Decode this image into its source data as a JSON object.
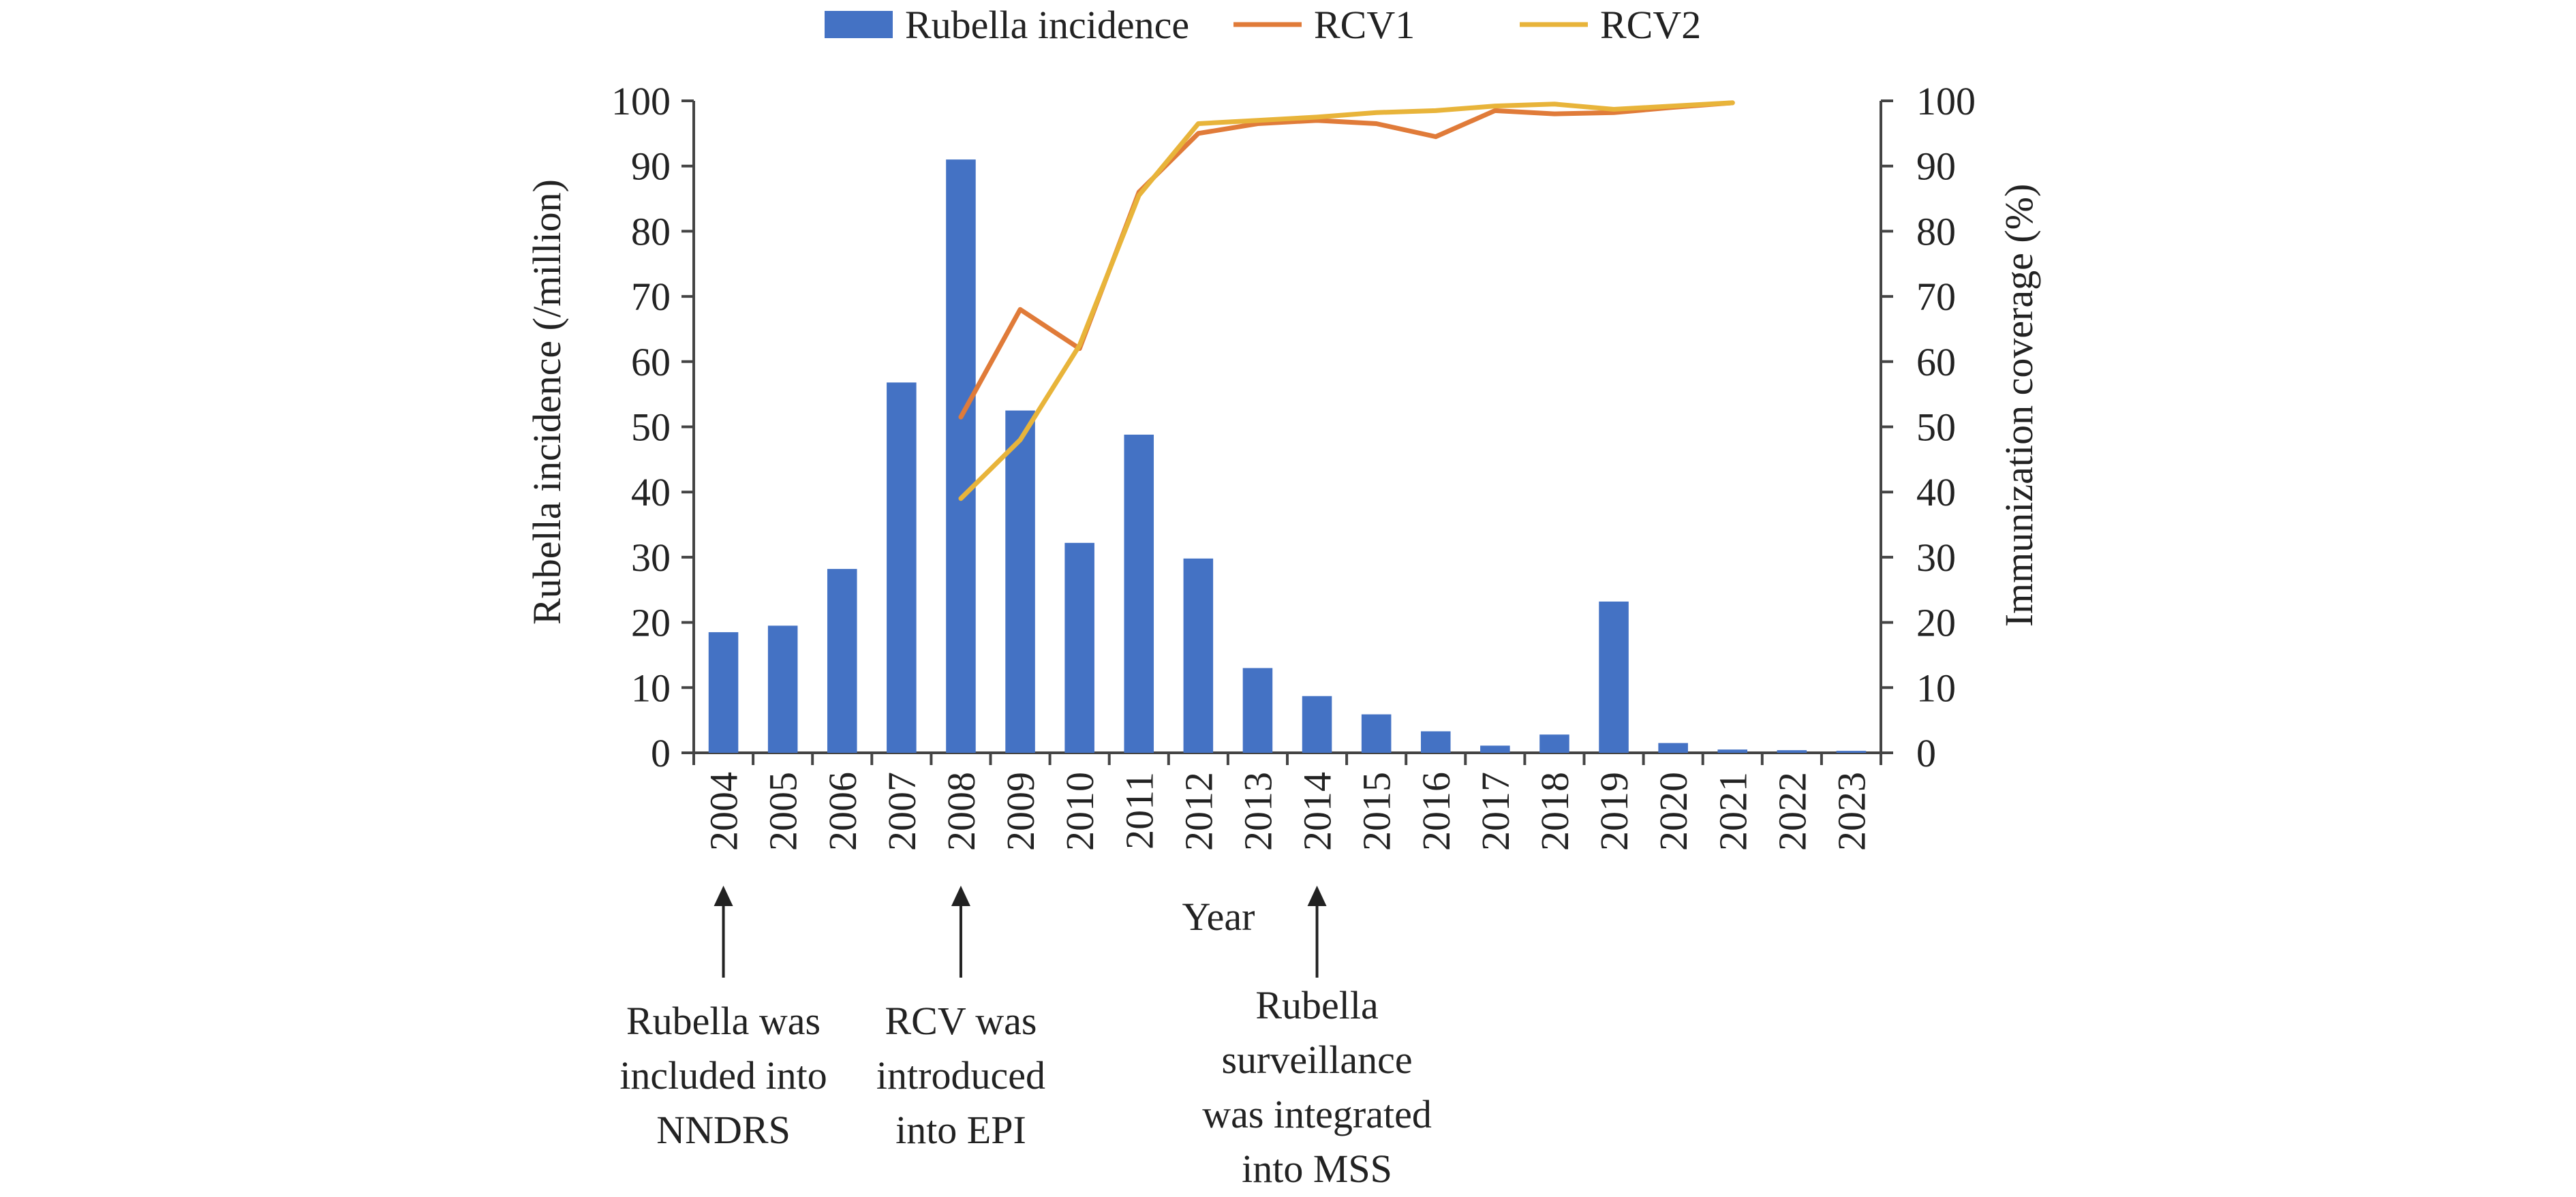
{
  "chart_data": {
    "type": "bar",
    "categories": [
      "2004",
      "2005",
      "2006",
      "2007",
      "2008",
      "2009",
      "2010",
      "2011",
      "2012",
      "2013",
      "2014",
      "2015",
      "2016",
      "2017",
      "2018",
      "2019",
      "2020",
      "2021",
      "2022",
      "2023"
    ],
    "xlabel": "Year",
    "ylabel": "Rubella incidence (/million)",
    "y2label": "Immunization coverage (%)",
    "ylim": [
      0,
      100
    ],
    "y2lim": [
      0,
      100
    ],
    "yticks": [
      "0",
      "10",
      "20",
      "30",
      "40",
      "50",
      "60",
      "70",
      "80",
      "90",
      "100"
    ],
    "y2ticks": [
      "0",
      "10",
      "20",
      "30",
      "40",
      "50",
      "60",
      "70",
      "80",
      "90",
      "100"
    ],
    "legend_position": "top",
    "series": [
      {
        "name": "Rubella incidence",
        "type": "bar",
        "axis": "left",
        "color": "#4472C4",
        "values": [
          18.5,
          19.5,
          28.2,
          56.8,
          91.0,
          52.5,
          32.2,
          48.8,
          29.8,
          13.0,
          8.7,
          5.9,
          3.3,
          1.1,
          2.8,
          23.2,
          1.5,
          0.5,
          0.4,
          0.3
        ]
      },
      {
        "name": "RCV1",
        "type": "line",
        "axis": "right",
        "color": "#E07B39",
        "x": [
          "2008",
          "2009",
          "2010",
          "2011",
          "2012",
          "2013",
          "2014",
          "2015",
          "2016",
          "2017",
          "2018",
          "2019",
          "2020",
          "2021"
        ],
        "values": [
          51.5,
          68.0,
          62.0,
          86.0,
          95.0,
          96.5,
          97.0,
          96.5,
          94.5,
          98.5,
          98.0,
          98.2,
          99.0,
          99.7
        ]
      },
      {
        "name": "RCV2",
        "type": "line",
        "axis": "right",
        "color": "#E8B43A",
        "x": [
          "2008",
          "2009",
          "2010",
          "2011",
          "2012",
          "2013",
          "2014",
          "2015",
          "2016",
          "2017",
          "2018",
          "2019",
          "2020",
          "2021"
        ],
        "values": [
          39.0,
          48.0,
          62.5,
          85.5,
          96.5,
          97.0,
          97.5,
          98.2,
          98.5,
          99.2,
          99.5,
          98.7,
          99.2,
          99.7
        ]
      }
    ],
    "annotations": [
      {
        "year": "2004",
        "lines": [
          "Rubella was",
          "included into",
          "NNDRS"
        ]
      },
      {
        "year": "2008",
        "lines": [
          "RCV was",
          "introduced",
          "into EPI"
        ]
      },
      {
        "year": "2014",
        "lines": [
          "Rubella",
          "surveillance",
          "was integrated",
          "into MSS"
        ]
      }
    ]
  }
}
